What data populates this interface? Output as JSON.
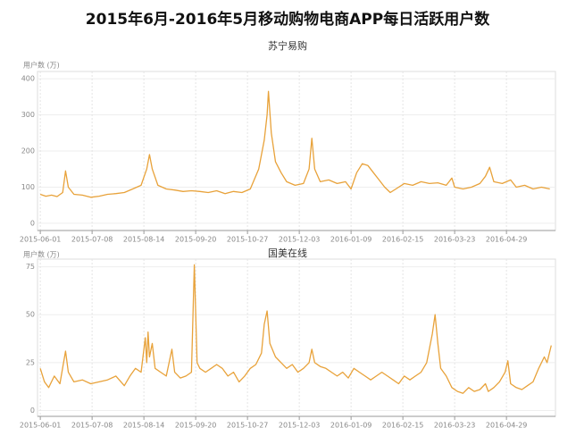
{
  "title": "2015年6月-2016年5月移动购物电商APP每日活跃用户数",
  "chart_data": [
    {
      "type": "line",
      "title": "苏宁易购",
      "ylabel": "用户数 (万)",
      "x": [
        "2015-06-01",
        "2015-06-05",
        "2015-06-09",
        "2015-06-13",
        "2015-06-17",
        "2015-06-19",
        "2015-06-21",
        "2015-06-25",
        "2015-07-01",
        "2015-07-07",
        "2015-07-13",
        "2015-07-19",
        "2015-07-25",
        "2015-07-31",
        "2015-08-06",
        "2015-08-12",
        "2015-08-16",
        "2015-08-18",
        "2015-08-20",
        "2015-08-24",
        "2015-08-30",
        "2015-09-05",
        "2015-09-11",
        "2015-09-17",
        "2015-09-23",
        "2015-09-29",
        "2015-10-05",
        "2015-10-11",
        "2015-10-17",
        "2015-10-23",
        "2015-10-29",
        "2015-11-04",
        "2015-11-08",
        "2015-11-10",
        "2015-11-11",
        "2015-11-13",
        "2015-11-16",
        "2015-11-20",
        "2015-11-24",
        "2015-11-30",
        "2015-12-06",
        "2015-12-10",
        "2015-12-12",
        "2015-12-14",
        "2015-12-18",
        "2015-12-24",
        "2015-12-30",
        "2016-01-05",
        "2016-01-09",
        "2016-01-13",
        "2016-01-17",
        "2016-01-21",
        "2016-01-25",
        "2016-01-29",
        "2016-02-02",
        "2016-02-06",
        "2016-02-10",
        "2016-02-16",
        "2016-02-22",
        "2016-02-28",
        "2016-03-05",
        "2016-03-11",
        "2016-03-17",
        "2016-03-21",
        "2016-03-23",
        "2016-03-29",
        "2016-04-04",
        "2016-04-10",
        "2016-04-14",
        "2016-04-17",
        "2016-04-20",
        "2016-04-26",
        "2016-05-02",
        "2016-05-06",
        "2016-05-12",
        "2016-05-18",
        "2016-05-24",
        "2016-05-30"
      ],
      "series": [
        {
          "name": "苏宁易购",
          "color": "#e8a23a",
          "values": [
            80,
            75,
            78,
            74,
            85,
            145,
            100,
            80,
            78,
            72,
            75,
            80,
            82,
            85,
            95,
            105,
            150,
            190,
            150,
            105,
            95,
            92,
            88,
            90,
            88,
            85,
            90,
            82,
            88,
            85,
            95,
            150,
            230,
            300,
            365,
            250,
            170,
            140,
            115,
            105,
            110,
            150,
            235,
            150,
            115,
            120,
            110,
            115,
            95,
            140,
            165,
            160,
            140,
            120,
            100,
            85,
            95,
            110,
            105,
            115,
            110,
            112,
            105,
            125,
            100,
            95,
            100,
            110,
            130,
            155,
            115,
            110,
            120,
            100,
            105,
            95,
            100,
            95
          ]
        }
      ],
      "xlim": [
        "2015-05-30",
        "2016-06-03"
      ],
      "xticks": [
        "2015-06-01",
        "2015-07-08",
        "2015-08-14",
        "2015-09-20",
        "2015-10-27",
        "2015-12-03",
        "2016-01-09",
        "2016-02-15",
        "2016-03-23",
        "2016-04-29"
      ],
      "ylim": [
        -20,
        420
      ],
      "yticks": [
        0,
        100,
        200,
        300,
        400
      ],
      "grid": true
    },
    {
      "type": "line",
      "title": "国美在线",
      "ylabel": "用户数 (万)",
      "x": [
        "2015-06-01",
        "2015-06-04",
        "2015-06-07",
        "2015-06-11",
        "2015-06-15",
        "2015-06-19",
        "2015-06-21",
        "2015-06-25",
        "2015-07-01",
        "2015-07-07",
        "2015-07-13",
        "2015-07-19",
        "2015-07-25",
        "2015-07-31",
        "2015-08-04",
        "2015-08-08",
        "2015-08-12",
        "2015-08-15",
        "2015-08-16",
        "2015-08-17",
        "2015-08-18",
        "2015-08-20",
        "2015-08-22",
        "2015-08-26",
        "2015-08-30",
        "2015-09-03",
        "2015-09-05",
        "2015-09-09",
        "2015-09-13",
        "2015-09-17",
        "2015-09-19",
        "2015-09-21",
        "2015-09-23",
        "2015-09-27",
        "2015-10-01",
        "2015-10-05",
        "2015-10-09",
        "2015-10-13",
        "2015-10-17",
        "2015-10-21",
        "2015-10-25",
        "2015-10-29",
        "2015-11-02",
        "2015-11-06",
        "2015-11-08",
        "2015-11-10",
        "2015-11-12",
        "2015-11-16",
        "2015-11-20",
        "2015-11-24",
        "2015-11-28",
        "2015-12-02",
        "2015-12-06",
        "2015-12-10",
        "2015-12-12",
        "2015-12-14",
        "2015-12-18",
        "2015-12-22",
        "2015-12-26",
        "2015-12-30",
        "2016-01-03",
        "2016-01-07",
        "2016-01-11",
        "2016-01-15",
        "2016-01-19",
        "2016-01-23",
        "2016-01-27",
        "2016-01-31",
        "2016-02-04",
        "2016-02-08",
        "2016-02-12",
        "2016-02-16",
        "2016-02-20",
        "2016-02-24",
        "2016-02-28",
        "2016-03-03",
        "2016-03-07",
        "2016-03-09",
        "2016-03-11",
        "2016-03-13",
        "2016-03-17",
        "2016-03-21",
        "2016-03-25",
        "2016-03-29",
        "2016-04-02",
        "2016-04-06",
        "2016-04-10",
        "2016-04-14",
        "2016-04-16",
        "2016-04-20",
        "2016-04-24",
        "2016-04-28",
        "2016-04-30",
        "2016-05-02",
        "2016-05-06",
        "2016-05-10",
        "2016-05-14",
        "2016-05-18",
        "2016-05-22",
        "2016-05-26",
        "2016-05-28",
        "2016-05-31"
      ],
      "series": [
        {
          "name": "国美在线",
          "color": "#e8a23a",
          "values": [
            22,
            15,
            12,
            18,
            14,
            31,
            20,
            15,
            16,
            14,
            15,
            16,
            18,
            13,
            18,
            22,
            20,
            38,
            25,
            41,
            28,
            35,
            22,
            20,
            18,
            32,
            20,
            17,
            18,
            20,
            76,
            25,
            22,
            20,
            22,
            24,
            22,
            18,
            20,
            15,
            18,
            22,
            24,
            30,
            45,
            52,
            35,
            28,
            25,
            22,
            24,
            20,
            22,
            25,
            32,
            25,
            23,
            22,
            20,
            18,
            20,
            17,
            22,
            20,
            18,
            16,
            18,
            20,
            18,
            16,
            14,
            18,
            16,
            18,
            20,
            25,
            40,
            50,
            35,
            22,
            18,
            12,
            10,
            9,
            12,
            10,
            11,
            14,
            10,
            12,
            15,
            20,
            26,
            14,
            12,
            11,
            13,
            15,
            22,
            28,
            25,
            34
          ]
        }
      ],
      "xlim": [
        "2015-05-30",
        "2016-06-03"
      ],
      "xticks": [
        "2015-06-01",
        "2015-07-08",
        "2015-08-14",
        "2015-09-20",
        "2015-10-27",
        "2015-12-03",
        "2016-01-09",
        "2016-02-15",
        "2016-03-23",
        "2016-04-29"
      ],
      "ylim": [
        -3,
        79
      ],
      "yticks": [
        0,
        25,
        50,
        75
      ],
      "grid": true
    }
  ]
}
